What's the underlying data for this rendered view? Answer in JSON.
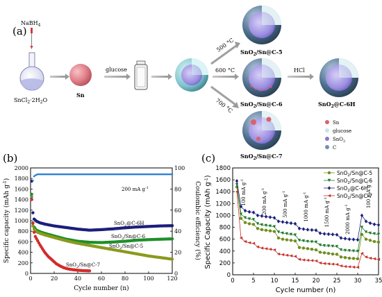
{
  "scheme": {
    "panel_label": "(a)",
    "reagent": "NaBH",
    "reagent_sub": "4",
    "flask_label": "SnCl",
    "flask_label_sub": "2",
    "flask_label_tail": "·2H",
    "flask_label_sub2": "2",
    "flask_label_end": "O",
    "sn_label": "Sn",
    "glucose_label": "glucose",
    "temp_500": "500 °C",
    "temp_600": "600 °C",
    "temp_700": "700 °C",
    "hcl_label": "HCl",
    "p5_a": "SnO",
    "p5_sub": "2",
    "p5_b": "/Sn@C-5",
    "p6_a": "SnO",
    "p6_sub": "2",
    "p6_b": "/Sn@C-6",
    "p7_a": "SnO",
    "p7_sub": "2",
    "p7_b": "/Sn@C-7",
    "p6h_a": "SnO",
    "p6h_sub": "2",
    "p6h_b": "@C-6H",
    "legend": [
      {
        "label": "Sn",
        "color": "#d9626b"
      },
      {
        "label": "glucose",
        "color": "#bfe8ec"
      },
      {
        "label": "SnO",
        "sub": "2",
        "color": "#8a78d6"
      },
      {
        "label": "C",
        "color": "#6f8fb5"
      }
    ],
    "colors": {
      "sn": "#e0808a",
      "shell": "#7fc3cc",
      "core": "#9b8de0",
      "carbon": "#4d6f8e"
    }
  },
  "chart_data": [
    {
      "type": "scatter",
      "panel_label": "(b)",
      "xlabel": "Cycle number (n)",
      "ylabel": "Specific capacity (mAh g",
      "ylabel_sup": "-1",
      "ylabel_end": ")",
      "y2label": "Coulombic efficiency (%)",
      "annotation": "200 mA g",
      "annotation_sup": "-1",
      "xlim": [
        0,
        120
      ],
      "ylim": [
        0,
        2000
      ],
      "y2lim": [
        0,
        100
      ],
      "xticks": [
        "0",
        "20",
        "40",
        "60",
        "80",
        "100",
        "120"
      ],
      "yticks": [
        "0",
        "200",
        "400",
        "600",
        "800",
        "1000",
        "1200",
        "1400",
        "1600",
        "1800",
        "2000"
      ],
      "y2ticks": [
        "0",
        "20",
        "40",
        "60",
        "80",
        "100"
      ],
      "series": [
        {
          "name": "SnO2@C-6H",
          "label_a": "SnO",
          "label_sub": "2",
          "label_b": "@C-6H",
          "color": "#1c1f7a",
          "x": [
            1,
            2,
            3,
            5,
            8,
            12,
            20,
            30,
            40,
            50,
            60,
            70,
            80,
            90,
            100,
            110,
            120
          ],
          "y": [
            1750,
            1150,
            1030,
            990,
            960,
            935,
            900,
            870,
            840,
            820,
            830,
            845,
            865,
            880,
            890,
            900,
            905
          ]
        },
        {
          "name": "SnO2/Sn@C-6",
          "label_a": "SnO",
          "label_sub": "2",
          "label_b": "/Sn@C-6",
          "color": "#1f8f2a",
          "x": [
            1,
            2,
            3,
            5,
            8,
            12,
            20,
            30,
            40,
            50,
            60,
            70,
            80,
            90,
            100,
            110,
            120
          ],
          "y": [
            1500,
            960,
            880,
            820,
            790,
            760,
            710,
            650,
            610,
            590,
            585,
            595,
            610,
            630,
            640,
            648,
            655
          ]
        },
        {
          "name": "SnO2/Sn@C-5",
          "label_a": "SnO",
          "label_sub": "2",
          "label_b": "/Sn@C-5",
          "color": "#8a9a1e",
          "x": [
            1,
            2,
            3,
            5,
            8,
            12,
            20,
            30,
            40,
            50,
            60,
            70,
            80,
            90,
            100,
            110,
            120
          ],
          "y": [
            1450,
            900,
            840,
            790,
            760,
            730,
            680,
            620,
            570,
            530,
            490,
            450,
            410,
            370,
            330,
            300,
            270
          ]
        },
        {
          "name": "SnO2/Sn@C-7",
          "label_a": "SnO",
          "label_sub": "2",
          "label_b": "/Sn@C-7",
          "color": "#d42a2a",
          "x": [
            1,
            2,
            3,
            4,
            6,
            8,
            10,
            12,
            15,
            18,
            20,
            22,
            25,
            28,
            30,
            33,
            36,
            40,
            45,
            50
          ],
          "y": [
            1400,
            950,
            780,
            700,
            620,
            540,
            470,
            400,
            320,
            260,
            220,
            180,
            140,
            110,
            95,
            80,
            70,
            60,
            52,
            48
          ]
        },
        {
          "name": "Coulombic efficiency",
          "axis": "y2",
          "color": "#2a7fd4",
          "x": [
            1,
            2,
            3,
            4,
            6,
            10,
            20,
            40,
            60,
            80,
            100,
            120
          ],
          "y": [
            72,
            88,
            92,
            93,
            94,
            94,
            94,
            94,
            94,
            94,
            94,
            94
          ]
        }
      ]
    },
    {
      "type": "line",
      "panel_label": "(c)",
      "xlabel": "Cycle number (n)",
      "ylabel": "Specific Capacity (mAh g",
      "ylabel_sup": "-1",
      "ylabel_end": ")",
      "xlim": [
        0,
        35
      ],
      "ylim": [
        0,
        1800
      ],
      "xticks": [
        "0",
        "5",
        "10",
        "15",
        "20",
        "25",
        "30",
        "35"
      ],
      "yticks": [
        "0",
        "200",
        "400",
        "600",
        "800",
        "1000",
        "1200",
        "1400",
        "1600",
        "1800"
      ],
      "rate_labels": [
        {
          "text": "100 mA g",
          "x": 3,
          "y": 1160
        },
        {
          "text": "200 mA g",
          "x": 8,
          "y": 1010
        },
        {
          "text": "500 mA g",
          "x": 13,
          "y": 960
        },
        {
          "text": "1000 mA g",
          "x": 18,
          "y": 890
        },
        {
          "text": "1500 mA g",
          "x": 23,
          "y": 800
        },
        {
          "text": "2000 mA g",
          "x": 28,
          "y": 680
        },
        {
          "text": "100 mA g",
          "x": 33,
          "y": 1120
        }
      ],
      "rate_sup": "-1",
      "series": [
        {
          "name": "SnO2/Sn@C-5",
          "label_a": "SnO",
          "label_sub": "2",
          "label_b": "/Sn@C-5",
          "color": "#6f8f1e",
          "marker": "circle",
          "x": [
            1,
            2,
            3,
            4,
            5,
            6,
            7,
            8,
            9,
            10,
            11,
            12,
            13,
            14,
            15,
            16,
            17,
            18,
            19,
            20,
            21,
            22,
            23,
            24,
            25,
            26,
            27,
            28,
            29,
            30,
            31,
            32,
            33,
            34,
            35
          ],
          "y": [
            1480,
            950,
            880,
            860,
            850,
            780,
            760,
            750,
            740,
            730,
            620,
            600,
            590,
            580,
            570,
            460,
            450,
            440,
            430,
            420,
            380,
            370,
            360,
            350,
            345,
            300,
            290,
            280,
            275,
            270,
            680,
            600,
            580,
            560,
            550
          ]
        },
        {
          "name": "SnO2/Sn@C-6",
          "label_a": "SnO",
          "label_sub": "2",
          "label_b": "/Sn@C-6",
          "color": "#1f7a2a",
          "marker": "triangle-down",
          "x": [
            1,
            2,
            3,
            4,
            5,
            6,
            7,
            8,
            9,
            10,
            11,
            12,
            13,
            14,
            15,
            16,
            17,
            18,
            19,
            20,
            21,
            22,
            23,
            24,
            25,
            26,
            27,
            28,
            29,
            30,
            31,
            32,
            33,
            34,
            35
          ],
          "y": [
            1520,
            1020,
            960,
            940,
            930,
            860,
            840,
            830,
            820,
            810,
            720,
            700,
            690,
            680,
            670,
            580,
            570,
            560,
            555,
            550,
            500,
            490,
            485,
            480,
            475,
            420,
            410,
            405,
            400,
            395,
            800,
            720,
            700,
            690,
            680
          ]
        },
        {
          "name": "SnO2@C-6H",
          "label_a": "SnO",
          "label_sub": "2",
          "label_b": "@C-6H",
          "color": "#1c1f7a",
          "marker": "diamond",
          "x": [
            1,
            2,
            3,
            4,
            5,
            6,
            7,
            8,
            9,
            10,
            11,
            12,
            13,
            14,
            15,
            16,
            17,
            18,
            19,
            20,
            21,
            22,
            23,
            24,
            25,
            26,
            27,
            28,
            29,
            30,
            31,
            32,
            33,
            34,
            35
          ],
          "y": [
            1580,
            1150,
            1080,
            1060,
            1050,
            1000,
            990,
            980,
            970,
            960,
            900,
            890,
            880,
            870,
            860,
            780,
            770,
            760,
            755,
            750,
            700,
            690,
            685,
            680,
            675,
            620,
            610,
            600,
            595,
            590,
            1000,
            900,
            870,
            850,
            840
          ]
        },
        {
          "name": "SnO2/Sn@C-7",
          "label_a": "SnO",
          "label_sub": "2",
          "label_b": "/Sn@C-7",
          "color": "#c4302a",
          "marker": "triangle-left",
          "x": [
            1,
            2,
            3,
            4,
            5,
            6,
            7,
            8,
            9,
            10,
            11,
            12,
            13,
            14,
            15,
            16,
            17,
            18,
            19,
            20,
            21,
            22,
            23,
            24,
            25,
            26,
            27,
            28,
            29,
            30,
            31,
            32,
            33,
            34,
            35
          ],
          "y": [
            1400,
            620,
            560,
            540,
            530,
            470,
            450,
            440,
            430,
            420,
            350,
            340,
            330,
            320,
            310,
            260,
            250,
            245,
            240,
            235,
            200,
            190,
            185,
            180,
            175,
            150,
            140,
            135,
            130,
            125,
            360,
            300,
            280,
            270,
            260
          ]
        }
      ]
    }
  ]
}
